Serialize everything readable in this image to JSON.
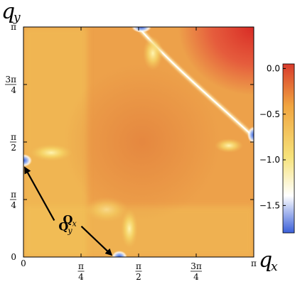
{
  "chart_data": {
    "type": "heatmap",
    "x_axis": {
      "label_main": "q",
      "label_sub": "x",
      "range": [
        0,
        3.14159
      ],
      "ticks": [
        {
          "value": 0,
          "label": "0"
        },
        {
          "value": 0.7854,
          "label": "π/4"
        },
        {
          "value": 1.5708,
          "label": "π/2"
        },
        {
          "value": 2.3562,
          "label": "3π/4"
        },
        {
          "value": 3.14159,
          "label": "π"
        }
      ]
    },
    "y_axis": {
      "label_main": "q",
      "label_sub": "y",
      "range": [
        0,
        3.14159
      ],
      "ticks": [
        {
          "value": 0,
          "label": "0"
        },
        {
          "value": 0.7854,
          "label": "π/4"
        },
        {
          "value": 1.5708,
          "label": "π/2"
        },
        {
          "value": 2.3562,
          "label": "3π/4"
        },
        {
          "value": 3.14159,
          "label": "π"
        }
      ]
    },
    "colorbar": {
      "range": [
        -1.8,
        0.05
      ],
      "ticks": [
        {
          "value": 0.0,
          "label": "0.0"
        },
        {
          "value": -0.5,
          "label": "−0.5"
        },
        {
          "value": -1.0,
          "label": "−1.0"
        },
        {
          "value": -1.5,
          "label": "−1.5"
        }
      ],
      "colors": [
        "#3a5fd9",
        "#ffffff",
        "#f6e27a",
        "#f0a540",
        "#d83a2c"
      ]
    },
    "annotations": [
      {
        "main": "Q",
        "sub": "y",
        "arrow_from": [
          0.42,
          0.5
        ],
        "arrow_to": [
          0.02,
          1.22
        ]
      },
      {
        "main": "Q",
        "sub": "x",
        "arrow_from": [
          0.79,
          0.42
        ],
        "arrow_to": [
          1.2,
          0.03
        ]
      }
    ],
    "features": {
      "background_value": -0.35,
      "peak_value": 0.0,
      "min_value": -1.8,
      "hotspots": [
        {
          "x": 0.0,
          "y": 1.2,
          "value": -1.8
        },
        {
          "x": 1.2,
          "y": 0.0,
          "value": -1.8
        },
        {
          "x": 1.65,
          "y": 3.14,
          "value": -1.8
        },
        {
          "x": 3.14,
          "y": 1.65,
          "value": -1.8
        }
      ]
    }
  }
}
